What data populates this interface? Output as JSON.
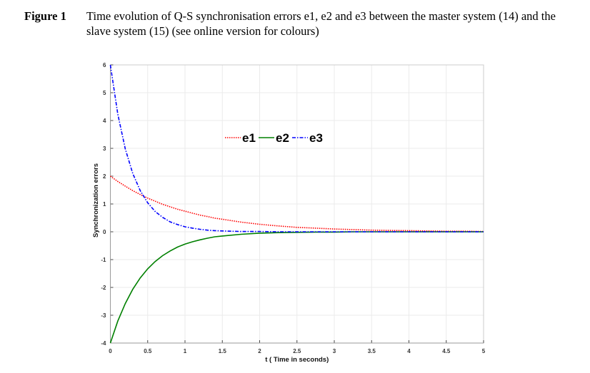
{
  "caption": {
    "label": "Figure 1",
    "text": "Time evolution of Q-S synchronisation errors e1, e2 and e3 between the master system (14) and the slave system (15) (see online version for colours)"
  },
  "chart_data": {
    "type": "line",
    "title": "",
    "xlabel": "t ( Time in seconds)",
    "ylabel": "Synchronization errors",
    "xlim": [
      0,
      5
    ],
    "ylim": [
      -4,
      6
    ],
    "xticks": [
      "0",
      "0.5",
      "1",
      "1.5",
      "2",
      "2.5",
      "3",
      "3.5",
      "4",
      "4.5",
      "5"
    ],
    "yticks": [
      "-4",
      "-3",
      "-2",
      "-1",
      "0",
      "1",
      "2",
      "3",
      "4",
      "5",
      "6"
    ],
    "grid": true,
    "legend_placement": "top-center",
    "x": [
      0,
      0.1,
      0.2,
      0.3,
      0.4,
      0.5,
      0.6,
      0.7,
      0.8,
      0.9,
      1,
      1.1,
      1.2,
      1.3,
      1.4,
      1.5,
      1.75,
      2,
      2.25,
      2.5,
      2.75,
      3,
      3.25,
      3.5,
      3.75,
      4,
      4.25,
      4.5,
      4.75,
      5
    ],
    "series": [
      {
        "name": "e1",
        "color": "#ff0000",
        "style": "dotted",
        "values": [
          2,
          1.81,
          1.64,
          1.48,
          1.34,
          1.21,
          1.1,
          0.99,
          0.9,
          0.81,
          0.74,
          0.67,
          0.6,
          0.55,
          0.49,
          0.45,
          0.35,
          0.27,
          0.21,
          0.16,
          0.13,
          0.1,
          0.08,
          0.06,
          0.05,
          0.04,
          0.03,
          0.02,
          0.02,
          0.01
        ]
      },
      {
        "name": "e2",
        "color": "#008000",
        "style": "solid",
        "values": [
          -4,
          -3.21,
          -2.58,
          -2.07,
          -1.66,
          -1.33,
          -1.07,
          -0.86,
          -0.69,
          -0.55,
          -0.44,
          -0.36,
          -0.29,
          -0.23,
          -0.18,
          -0.15,
          -0.09,
          -0.05,
          -0.03,
          -0.02,
          -0.01,
          -0.01,
          0,
          0,
          0,
          0,
          0,
          0,
          0,
          0
        ]
      },
      {
        "name": "e3",
        "color": "#0000ff",
        "style": "dash-dot",
        "values": [
          6,
          4.23,
          2.98,
          2.1,
          1.48,
          1.04,
          0.73,
          0.52,
          0.36,
          0.26,
          0.18,
          0.13,
          0.09,
          0.06,
          0.04,
          0.03,
          0.01,
          0.01,
          0,
          0,
          0,
          0,
          0,
          0,
          0,
          0,
          0,
          0,
          0,
          0
        ]
      }
    ]
  }
}
